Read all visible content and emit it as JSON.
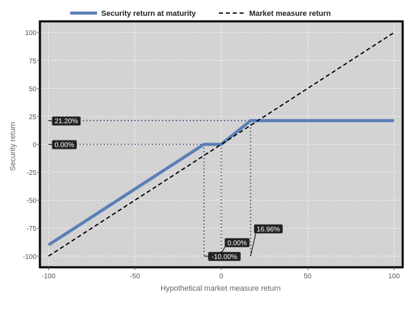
{
  "chart_data": {
    "type": "line",
    "xlabel": "Hypothetical market measure return",
    "ylabel": "Security return",
    "xlim": [
      -105,
      105
    ],
    "ylim": [
      -110,
      110
    ],
    "x_ticks": [
      -100,
      -50,
      0,
      50,
      100
    ],
    "y_ticks": [
      100,
      75,
      50,
      25,
      0,
      -25,
      -50,
      -75,
      -100
    ],
    "grid": true,
    "legend_position": "top-center",
    "series": [
      {
        "name": "Security return at maturity",
        "style": "solid",
        "color": "#5a7fb8",
        "x": [
          -100,
          -10,
          0,
          16.96,
          100
        ],
        "y": [
          -90,
          0,
          0,
          21.2,
          21.2
        ]
      },
      {
        "name": "Market measure return",
        "style": "dashed",
        "color": "#000000",
        "x": [
          -100,
          100
        ],
        "y": [
          -100,
          100
        ]
      }
    ],
    "annotations": [
      {
        "label": "21.20%",
        "y": 21.2,
        "x_to": 16.96,
        "axis": "y"
      },
      {
        "label": "0.00%",
        "y": 0,
        "x_to": 0,
        "axis": "y"
      },
      {
        "label": "-10.00%",
        "x": -10,
        "y_from": 0,
        "axis": "x"
      },
      {
        "label": "0.00%",
        "x": 0,
        "y_from": 0,
        "axis": "x"
      },
      {
        "label": "16.96%",
        "x": 16.96,
        "y_from": 21.2,
        "axis": "x"
      }
    ],
    "colors": {
      "plot_background": "#d3d3d3",
      "grid": "#f2f2f2",
      "frame": "#000000",
      "callout_bg": "#222222",
      "guide": "#2b3466"
    }
  }
}
